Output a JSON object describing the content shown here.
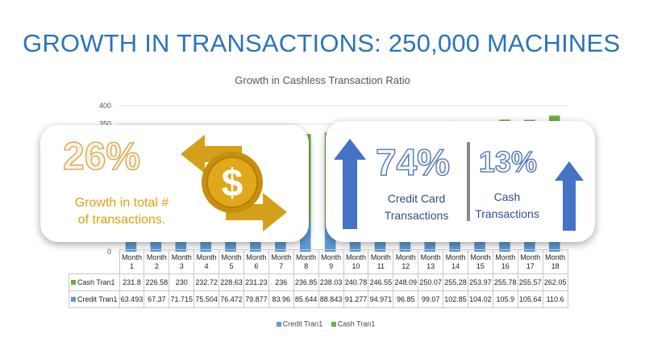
{
  "slide_title": "GROWTH IN TRANSACTIONS: 250,000 MACHINES",
  "colors": {
    "title": "#2b74b8",
    "credit": "#5b9bd5",
    "cash": "#70ad47",
    "gold": "#d4a24a",
    "arrow_blue": "#4472c4"
  },
  "callouts": {
    "total": {
      "value": "26%",
      "label_line1": "Growth in total #",
      "label_line2": "of transactions.",
      "icon": "dollar-exchange-icon"
    },
    "credit": {
      "value": "74%",
      "label_line1": "Credit Card",
      "label_line2": "Transactions",
      "icon": "up-arrow-icon"
    },
    "cash": {
      "value": "13%",
      "label_line1": "Cash",
      "label_line2": "Transactions",
      "icon": "up-arrow-icon"
    }
  },
  "chart_data": {
    "type": "bar",
    "title": "Growth in Cashless Transaction Ratio",
    "categories": [
      "Month 1",
      "Month 2",
      "Month 3",
      "Month 4",
      "Month 5",
      "Month 6",
      "Month 7",
      "Month 8",
      "Month 9",
      "Month 10",
      "Month 11",
      "Month 12",
      "Month 13",
      "Month 14",
      "Month 15",
      "Month 16",
      "Month 17",
      "Month 18"
    ],
    "series": [
      {
        "name": "Credit Tran1",
        "color": "#5b9bd5",
        "values": [
          63.493,
          67.37,
          71.715,
          75.504,
          76.472,
          79.877,
          83.96,
          85.644,
          88.843,
          91.277,
          94.971,
          96.85,
          99.07,
          102.85,
          104.02,
          105.9,
          105.64,
          110.6
        ]
      },
      {
        "name": "Cash Tran1",
        "color": "#70ad47",
        "values": [
          231.8,
          226.58,
          230,
          232.72,
          228.63,
          231.23,
          236,
          236.85,
          238.03,
          240.78,
          246.55,
          248.09,
          250.07,
          255.28,
          253.97,
          255.78,
          255.57,
          262.05
        ]
      }
    ],
    "visible_y_ticks": [
      "400",
      "350",
      "0"
    ],
    "stacked": true,
    "ylim": [
      0,
      400
    ],
    "legend": "bottom",
    "data_table": true,
    "table_rows": [
      {
        "label": "Cash Tran1",
        "values": [
          "231.8",
          "226.58",
          "230",
          "232.72",
          "228.63",
          "231.23",
          "236",
          "236.85",
          "238.03",
          "240.78",
          "246.55",
          "248.09",
          "250.07",
          "255.28",
          "253.97",
          "255.78",
          "255.57",
          "262.05"
        ]
      },
      {
        "label": "Credit Tran1",
        "values": [
          "63.493",
          "67.37",
          "71.715",
          "75.504",
          "76.472",
          "79.877",
          "83.96",
          "85.644",
          "88.843",
          "91.277",
          "94.971",
          "96.85",
          "99.07",
          "102.85",
          "104.02",
          "105.9",
          "105.64",
          "110.6"
        ]
      }
    ],
    "month_word": "Month"
  }
}
